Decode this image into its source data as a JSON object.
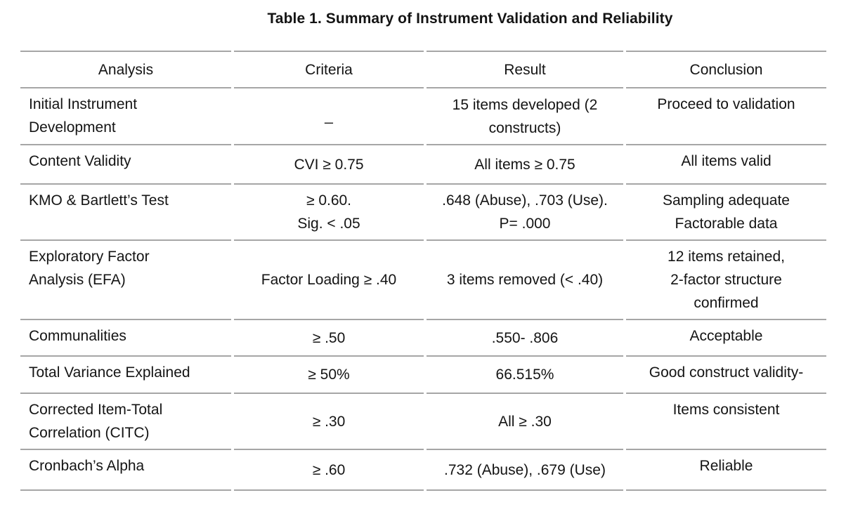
{
  "title": "Table 1. Summary of Instrument Validation and Reliability",
  "colors": {
    "background": "#ffffff",
    "text": "#141414",
    "rule": "#a6a6a6"
  },
  "table": {
    "headers": [
      "Analysis",
      "Criteria",
      "Result",
      "Conclusion"
    ],
    "rows": [
      {
        "analysis": "Initial Instrument\nDevelopment",
        "criteria": "_",
        "result": "15 items developed (2\nconstructs)",
        "conclusion": "Proceed to validation"
      },
      {
        "analysis": "Content Validity",
        "criteria": "CVI ≥ 0.75",
        "result": "All items ≥ 0.75",
        "conclusion": "All items valid"
      },
      {
        "analysis": "KMO & Bartlett’s Test",
        "criteria": "≥ 0.60.\nSig. < .05",
        "result": ".648 (Abuse), .703 (Use).\nP= .000",
        "conclusion": "Sampling adequate\nFactorable data"
      },
      {
        "analysis": "Exploratory Factor\nAnalysis (EFA)",
        "criteria": "Factor Loading ≥ .40",
        "result": "3 items removed (< .40)",
        "conclusion": "12 items retained,\n2-factor structure\nconfirmed"
      },
      {
        "analysis": "Communalities",
        "criteria": "≥ .50",
        "result": ".550- .806",
        "conclusion": "Acceptable"
      },
      {
        "analysis": "Total Variance Explained",
        "criteria": "≥ 50%",
        "result": "66.515%",
        "conclusion": "Good construct validity-"
      },
      {
        "analysis": "Corrected Item-Total\nCorrelation (CITC)",
        "criteria": "≥ .30",
        "result": "All ≥ .30",
        "conclusion": "Items consistent"
      },
      {
        "analysis": "Cronbach’s Alpha",
        "criteria": "≥ .60",
        "result": ".732 (Abuse), .679 (Use)",
        "conclusion": "Reliable"
      }
    ]
  }
}
